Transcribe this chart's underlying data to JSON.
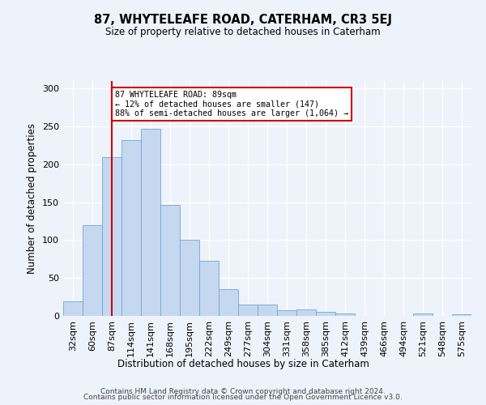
{
  "title": "87, WHYTELEAFE ROAD, CATERHAM, CR3 5EJ",
  "subtitle": "Size of property relative to detached houses in Caterham",
  "xlabel": "Distribution of detached houses by size in Caterham",
  "ylabel": "Number of detached properties",
  "bin_labels": [
    "32sqm",
    "60sqm",
    "87sqm",
    "114sqm",
    "141sqm",
    "168sqm",
    "195sqm",
    "222sqm",
    "249sqm",
    "277sqm",
    "304sqm",
    "331sqm",
    "358sqm",
    "385sqm",
    "412sqm",
    "439sqm",
    "466sqm",
    "494sqm",
    "521sqm",
    "548sqm",
    "575sqm"
  ],
  "bar_values": [
    19,
    120,
    210,
    232,
    247,
    146,
    101,
    73,
    35,
    15,
    15,
    8,
    9,
    5,
    3,
    0,
    0,
    0,
    3,
    0,
    2
  ],
  "bar_color": "#c5d8f0",
  "bar_edge_color": "#6aaad4",
  "property_line_x": 2,
  "property_line_label": "87 WHYTELEAFE ROAD: 89sqm",
  "annotation_line1": "← 12% of detached houses are smaller (147)",
  "annotation_line2": "88% of semi-detached houses are larger (1,064) →",
  "annotation_box_color": "#ffffff",
  "annotation_box_edge": "#cc0000",
  "vline_color": "#cc0000",
  "ylim": [
    0,
    310
  ],
  "yticks": [
    0,
    50,
    100,
    150,
    200,
    250,
    300
  ],
  "background_color": "#eef2fb",
  "fig_background_color": "#eef2fb",
  "grid_color": "#ffffff",
  "footer_line1": "Contains HM Land Registry data © Crown copyright and database right 2024.",
  "footer_line2": "Contains public sector information licensed under the Open Government Licence v3.0."
}
